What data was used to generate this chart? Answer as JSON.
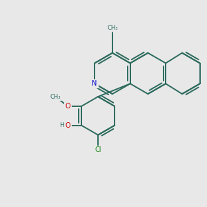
{
  "bg_color": "#e8e8e8",
  "bond_color": "#2d6b5e",
  "n_color": "#0000cd",
  "o_color": "#cc0000",
  "cl_color": "#228b22",
  "lw": 1.4,
  "dbo": 0.12,
  "figsize": [
    3.0,
    3.0
  ],
  "dpi": 100,
  "xlim": [
    0,
    10
  ],
  "ylim": [
    0,
    10
  ],
  "font_size": 6.5
}
